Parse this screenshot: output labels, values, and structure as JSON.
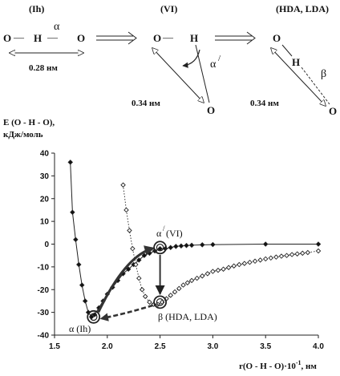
{
  "diagram": {
    "phases": [
      "(Ih)",
      "(VI)",
      "(HDA, LDA)"
    ],
    "o": "O",
    "h": "H",
    "dash": "—",
    "alpha": "α",
    "alpha_prime": "α",
    "prime": "/",
    "beta": "β",
    "dist_028": "0.28 нм",
    "dist_034_a": "0.34 нм",
    "dist_034_b": "0.34 нм"
  },
  "chart_data": {
    "type": "line",
    "ylabel_line1": "E (O - H - O),",
    "ylabel_line2": "кДж/моль",
    "xlabel": "r(O - H - O)·10",
    "xlabel_exp": "-1",
    "xlabel_unit": ", нм",
    "xlim": [
      1.5,
      4.0
    ],
    "ylim": [
      -40,
      40
    ],
    "xticks": [
      "1.5",
      "2.0",
      "2.5",
      "3.0",
      "3.5",
      "4.0"
    ],
    "yticks": [
      "40",
      "30",
      "20",
      "10",
      "0",
      "-10",
      "-20",
      "-30",
      "-40"
    ],
    "grid": false,
    "series": [
      {
        "name": "",
        "marker": "filled-diamond",
        "line": "solid",
        "x": [
          1.65,
          1.67,
          1.7,
          1.73,
          1.76,
          1.79,
          1.82,
          1.85,
          1.88,
          1.92,
          1.96,
          2.0,
          2.05,
          2.1,
          2.15,
          2.2,
          2.25,
          2.3,
          2.35,
          2.4,
          2.45,
          2.5,
          2.55,
          2.6,
          2.65,
          2.7,
          2.75,
          2.8,
          2.9,
          3.0,
          3.5,
          4.0
        ],
        "y": [
          36,
          14,
          2,
          -9,
          -18,
          -25,
          -30,
          -32,
          -31,
          -28,
          -25,
          -22,
          -19,
          -16,
          -13,
          -11,
          -9,
          -7,
          -5,
          -4,
          -3,
          -2,
          -2,
          -1.5,
          -1,
          -0.8,
          -0.6,
          -0.5,
          -0.3,
          -0.2,
          0,
          0
        ]
      },
      {
        "name": "",
        "marker": "open-diamond",
        "line": "dotted",
        "x": [
          2.15,
          2.18,
          2.21,
          2.24,
          2.27,
          2.3,
          2.33,
          2.36,
          2.4,
          2.44,
          2.48,
          2.52,
          2.56,
          2.6,
          2.64,
          2.68,
          2.72,
          2.76,
          2.8,
          2.85,
          2.9,
          2.95,
          3.0,
          3.05,
          3.1,
          3.15,
          3.2,
          3.25,
          3.3,
          3.35,
          3.4,
          3.45,
          3.5,
          3.55,
          3.6,
          3.65,
          3.7,
          3.75,
          3.8,
          3.85,
          3.9,
          4.0
        ],
        "y": [
          26,
          15,
          6,
          -2,
          -9,
          -15,
          -20,
          -23,
          -25.5,
          -26.5,
          -26.5,
          -25.5,
          -24,
          -22.5,
          -21,
          -19.5,
          -18,
          -17,
          -16,
          -15,
          -14,
          -13,
          -12,
          -11.5,
          -11,
          -10.3,
          -9.6,
          -9,
          -8.5,
          -8,
          -7.5,
          -7,
          -6.5,
          -6.1,
          -5.7,
          -5.3,
          -5,
          -4.6,
          -4.3,
          -4,
          -3.7,
          -3
        ]
      }
    ],
    "annotations": {
      "alpha_ih": "α (Ih)",
      "alpha_vi_a": "α",
      "alpha_vi_prime": "/",
      "alpha_vi_b": " (VI)",
      "beta": "β (HDA, LDA)"
    },
    "highlight_points": {
      "alpha_ih": [
        1.87,
        -32
      ],
      "alpha_vi": [
        2.5,
        -1.5
      ],
      "beta": [
        2.5,
        -25.5
      ]
    }
  }
}
